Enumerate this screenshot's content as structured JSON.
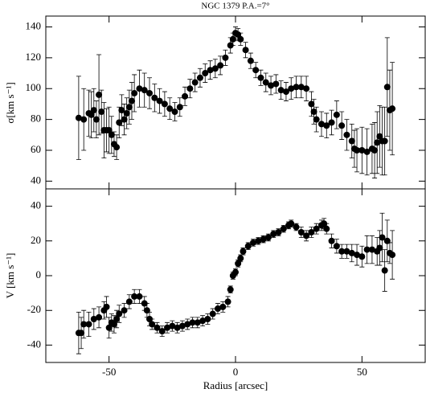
{
  "chart_data": [
    {
      "type": "scatter",
      "title": "NGC 1379   P.A.=7°",
      "ylabel": "σ[km s⁻¹]",
      "color": "#000000",
      "xlim": [
        -75,
        75
      ],
      "ylim": [
        35,
        147
      ],
      "xticks": [
        -50,
        0,
        50
      ],
      "yticks": [
        40,
        60,
        80,
        100,
        120,
        140
      ],
      "x": [
        -62,
        -60,
        -58,
        -57,
        -56,
        -55,
        -54,
        -53,
        -52,
        -51,
        -50,
        -49,
        -48,
        -47,
        -46,
        -45,
        -44,
        -43,
        -42,
        -41,
        -40,
        -38,
        -36,
        -34,
        -32,
        -30,
        -28,
        -26,
        -24,
        -22,
        -20,
        -18,
        -16,
        -14,
        -12,
        -10,
        -8,
        -6,
        -4,
        -2,
        -1,
        0,
        1,
        2,
        4,
        6,
        8,
        10,
        12,
        14,
        16,
        18,
        20,
        22,
        24,
        26,
        28,
        30,
        31,
        32,
        34,
        36,
        38,
        40,
        42,
        44,
        46,
        47,
        48,
        50,
        52,
        54,
        55,
        56,
        57,
        58,
        59,
        60,
        61,
        62
      ],
      "values": [
        81,
        80,
        84,
        83,
        86,
        80,
        96,
        85,
        73,
        73,
        73,
        70,
        64,
        62,
        78,
        86,
        80,
        84,
        88,
        92,
        97,
        100,
        99,
        97,
        94,
        92,
        90,
        87,
        85,
        88,
        95,
        100,
        104,
        107,
        110,
        112,
        113,
        115,
        120,
        128,
        132,
        136,
        135,
        132,
        125,
        118,
        112,
        107,
        104,
        102,
        103,
        99,
        98,
        100,
        101,
        101,
        100,
        90,
        85,
        80,
        77,
        76,
        78,
        83,
        76,
        70,
        66,
        61,
        60,
        60,
        59,
        61,
        60,
        65,
        69,
        66,
        66,
        101,
        86,
        87
      ],
      "errors": [
        27,
        20,
        15,
        15,
        14,
        12,
        26,
        14,
        18,
        14,
        15,
        12,
        8,
        8,
        10,
        10,
        10,
        10,
        11,
        12,
        12,
        12,
        11,
        10,
        9,
        8,
        8,
        7,
        6,
        6,
        6,
        6,
        6,
        6,
        6,
        6,
        6,
        6,
        5,
        5,
        4,
        4,
        4,
        4,
        5,
        5,
        5,
        5,
        6,
        6,
        6,
        6,
        6,
        7,
        7,
        7,
        8,
        8,
        8,
        8,
        8,
        8,
        8,
        9,
        9,
        10,
        11,
        12,
        14,
        15,
        15,
        16,
        18,
        20,
        20,
        22,
        22,
        32,
        26,
        30
      ]
    },
    {
      "type": "scatter",
      "xlabel": "Radius [arcsec]",
      "ylabel": "V [km s⁻¹]",
      "color": "#000000",
      "xlim": [
        -75,
        75
      ],
      "ylim": [
        -50,
        50
      ],
      "xticks": [
        -50,
        0,
        50
      ],
      "yticks": [
        -40,
        -20,
        0,
        20,
        40
      ],
      "x": [
        -62,
        -61,
        -60,
        -58,
        -56,
        -54,
        -52,
        -51,
        -50,
        -49,
        -48,
        -47,
        -46,
        -44,
        -42,
        -40,
        -38,
        -36,
        -35,
        -34,
        -33,
        -31,
        -29,
        -27,
        -25,
        -23,
        -21,
        -19,
        -17,
        -15,
        -13,
        -11,
        -9,
        -7,
        -5,
        -3,
        -2,
        -1,
        0,
        1,
        2,
        3,
        5,
        7,
        9,
        11,
        13,
        15,
        17,
        19,
        21,
        22,
        24,
        26,
        28,
        30,
        32,
        34,
        35,
        36,
        38,
        40,
        42,
        44,
        46,
        48,
        50,
        52,
        54,
        56,
        57,
        58,
        59,
        60,
        61,
        62
      ],
      "values": [
        -33,
        -33,
        -28,
        -28,
        -25,
        -24,
        -20,
        -18,
        -30,
        -27,
        -28,
        -25,
        -22,
        -20,
        -15,
        -12,
        -12,
        -16,
        -20,
        -25,
        -28,
        -30,
        -32,
        -30,
        -29,
        -30,
        -29,
        -28,
        -27,
        -27,
        -26,
        -25,
        -22,
        -19,
        -18,
        -15,
        -8,
        0,
        2,
        7,
        10,
        14,
        17,
        19,
        20,
        21,
        22,
        24,
        25,
        27,
        29,
        30,
        28,
        25,
        23,
        25,
        27,
        29,
        30,
        27,
        20,
        17,
        14,
        14,
        13,
        12,
        11,
        15,
        15,
        14,
        16,
        22,
        3,
        20,
        13,
        12
      ],
      "errors": [
        12,
        9,
        8,
        7,
        6,
        6,
        5,
        6,
        6,
        5,
        5,
        5,
        5,
        4,
        4,
        4,
        4,
        4,
        4,
        4,
        3,
        3,
        3,
        3,
        3,
        3,
        3,
        3,
        3,
        3,
        3,
        3,
        3,
        3,
        3,
        3,
        2,
        2,
        2,
        2,
        2,
        2,
        2,
        2,
        2,
        2,
        2,
        2,
        2,
        2,
        2,
        2,
        2,
        3,
        3,
        3,
        3,
        3,
        3,
        3,
        4,
        4,
        4,
        4,
        5,
        6,
        6,
        8,
        8,
        8,
        10,
        14,
        12,
        12,
        6,
        14
      ]
    }
  ]
}
